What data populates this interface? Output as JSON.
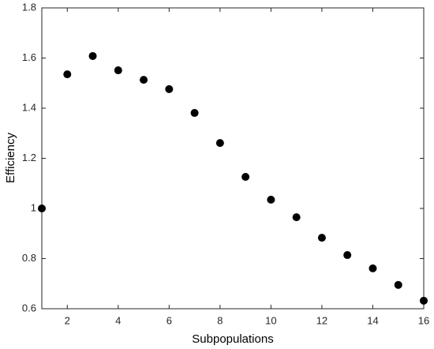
{
  "chart_data": {
    "type": "scatter",
    "x_label": "Subpopulations",
    "y_label": "Efficiency",
    "x": [
      1,
      2,
      3,
      4,
      5,
      6,
      7,
      8,
      9,
      10,
      11,
      12,
      13,
      14,
      15,
      16
    ],
    "values": [
      1.0,
      1.535,
      1.608,
      1.551,
      1.513,
      1.476,
      1.381,
      1.261,
      1.126,
      1.035,
      0.965,
      0.883,
      0.814,
      0.761,
      0.695,
      0.632
    ],
    "color": "#000000",
    "xlim": [
      1,
      16
    ],
    "xticks": [
      2,
      4,
      6,
      8,
      10,
      12,
      14,
      16
    ],
    "ylim": [
      0.6,
      1.8
    ],
    "yticks": [
      0.6,
      0.8,
      1,
      1.2,
      1.4,
      1.6,
      1.8
    ],
    "grid": false
  }
}
